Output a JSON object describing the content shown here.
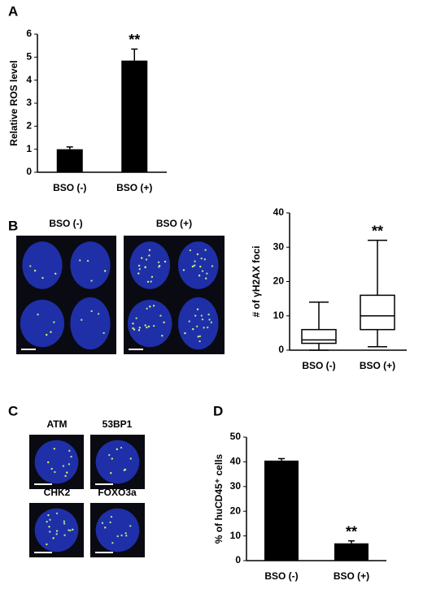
{
  "panel_labels": [
    "A",
    "B",
    "C",
    "D"
  ],
  "images": {
    "B": [
      "BSO (-)",
      "BSO (+)"
    ],
    "C": [
      "ATM",
      "53BP1",
      "CHK2",
      "FOXO3a"
    ]
  },
  "chart_data": [
    {
      "type": "bar",
      "ylabel": "Relative ROS level",
      "categories": [
        "BSO (-)",
        "BSO (+)"
      ],
      "values": [
        1.0,
        4.85
      ],
      "errors": [
        0.1,
        0.5
      ],
      "color": "#000000",
      "ylim": [
        0,
        6
      ],
      "yticks": [
        0,
        1,
        2,
        3,
        4,
        5,
        6
      ],
      "annotation": "**"
    },
    {
      "type": "box",
      "ylabel": "# of γH2AX foci",
      "categories": [
        "BSO (-)",
        "BSO (+)"
      ],
      "boxes": [
        {
          "min": 0,
          "q1": 2,
          "median": 3,
          "q3": 6,
          "max": 14
        },
        {
          "min": 1,
          "q1": 6,
          "median": 10,
          "q3": 16,
          "max": 32
        }
      ],
      "ylim": [
        0,
        40
      ],
      "yticks": [
        0,
        10,
        20,
        30,
        40
      ],
      "annotation": "**"
    },
    {
      "type": "bar",
      "ylabel": "% of huCD45⁺ cells",
      "categories": [
        "BSO (-)",
        "BSO (+)"
      ],
      "values": [
        40.5,
        7
      ],
      "errors": [
        0.8,
        1
      ],
      "color": "#000000",
      "ylim": [
        0,
        50
      ],
      "yticks": [
        0,
        10,
        20,
        30,
        40,
        50
      ],
      "annotation": "**"
    }
  ]
}
